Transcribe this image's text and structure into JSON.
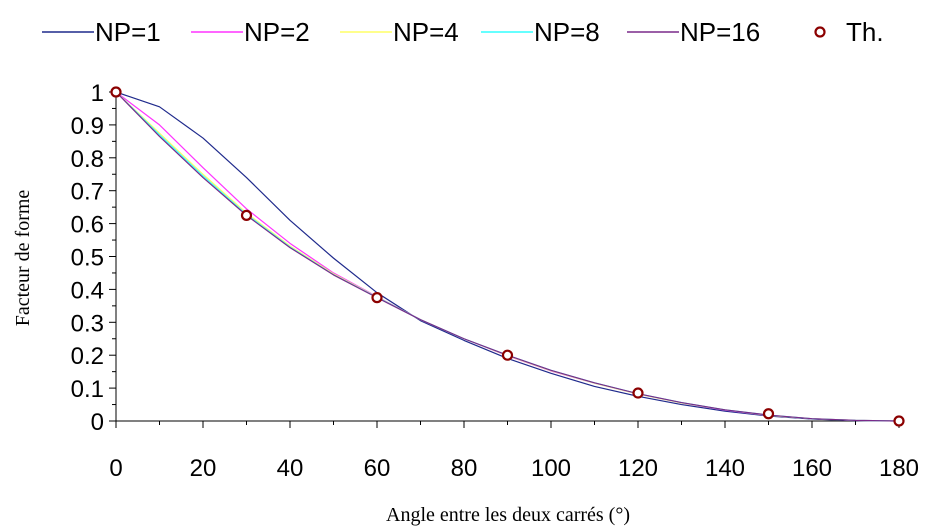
{
  "chart_data": {
    "type": "line",
    "xlabel": "Angle entre les deux carrés (°)",
    "ylabel": "Facteur de forme",
    "xlim": [
      0,
      180
    ],
    "ylim": [
      0,
      1
    ],
    "x_ticks": [
      "0",
      "20",
      "40",
      "60",
      "80",
      "100",
      "120",
      "140",
      "160",
      "180"
    ],
    "y_ticks": [
      "0",
      "0.1",
      "0.2",
      "0.3",
      "0.4",
      "0.5",
      "0.6",
      "0.7",
      "0.8",
      "0.9",
      "1"
    ],
    "legend_position": "top",
    "series": [
      {
        "name": "NP=1",
        "color": "#1f2a8c",
        "marker": "none",
        "x": [
          0,
          10,
          20,
          30,
          40,
          50,
          60,
          70,
          80,
          90,
          100,
          110,
          120,
          130,
          140,
          150,
          160,
          170,
          180
        ],
        "y": [
          1.0,
          0.955,
          0.86,
          0.74,
          0.61,
          0.495,
          0.39,
          0.305,
          0.245,
          0.19,
          0.145,
          0.105,
          0.075,
          0.05,
          0.03,
          0.015,
          0.006,
          0.001,
          0.0
        ]
      },
      {
        "name": "NP=2",
        "color": "#ff33ff",
        "marker": "none",
        "x": [
          0,
          10,
          20,
          30,
          40,
          50,
          60,
          70,
          80,
          90,
          100,
          110,
          120,
          130,
          140,
          150,
          160,
          170,
          180
        ],
        "y": [
          1.0,
          0.9,
          0.77,
          0.645,
          0.54,
          0.45,
          0.378,
          0.308,
          0.25,
          0.198,
          0.152,
          0.115,
          0.082,
          0.055,
          0.033,
          0.017,
          0.007,
          0.002,
          0.0
        ]
      },
      {
        "name": "NP=4",
        "color": "#ffff66",
        "marker": "none",
        "x": [
          0,
          10,
          20,
          30,
          40,
          50,
          60,
          70,
          80,
          90,
          100,
          110,
          120,
          130,
          140,
          150,
          160,
          170,
          180
        ],
        "y": [
          1.0,
          0.875,
          0.75,
          0.632,
          0.532,
          0.447,
          0.377,
          0.308,
          0.25,
          0.199,
          0.153,
          0.115,
          0.082,
          0.055,
          0.034,
          0.017,
          0.007,
          0.002,
          0.0
        ]
      },
      {
        "name": "NP=8",
        "color": "#33ffff",
        "marker": "none",
        "x": [
          0,
          10,
          20,
          30,
          40,
          50,
          60,
          70,
          80,
          90,
          100,
          110,
          120,
          130,
          140,
          150,
          160,
          170,
          180
        ],
        "y": [
          1.0,
          0.87,
          0.745,
          0.628,
          0.529,
          0.445,
          0.376,
          0.308,
          0.25,
          0.2,
          0.154,
          0.116,
          0.083,
          0.056,
          0.034,
          0.018,
          0.007,
          0.002,
          0.0
        ]
      },
      {
        "name": "NP=16",
        "color": "#7a2a8a",
        "marker": "none",
        "x": [
          0,
          10,
          20,
          30,
          40,
          50,
          60,
          70,
          80,
          90,
          100,
          110,
          120,
          130,
          140,
          150,
          160,
          170,
          180
        ],
        "y": [
          1.0,
          0.865,
          0.74,
          0.625,
          0.527,
          0.444,
          0.375,
          0.308,
          0.25,
          0.2,
          0.154,
          0.116,
          0.083,
          0.056,
          0.034,
          0.018,
          0.007,
          0.002,
          0.0
        ]
      },
      {
        "name": "Th.",
        "color": "#8b0000",
        "marker": "circle",
        "x": [
          0,
          30,
          60,
          90,
          120,
          150,
          180
        ],
        "y": [
          1.0,
          0.625,
          0.375,
          0.2,
          0.085,
          0.022,
          0.0
        ]
      }
    ]
  }
}
